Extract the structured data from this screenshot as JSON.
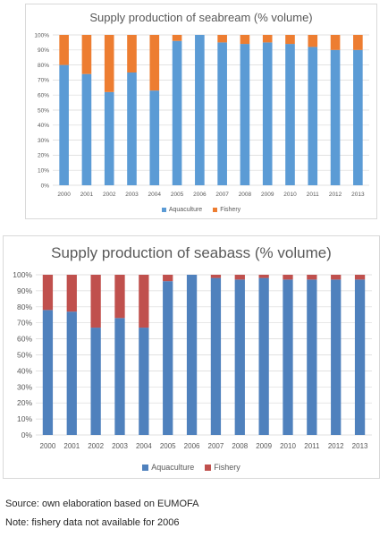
{
  "chart_data": [
    {
      "type": "bar",
      "stacked": true,
      "title": "Supply production of seabream (% volume)",
      "categories": [
        "2000",
        "2001",
        "2002",
        "2003",
        "2004",
        "2005",
        "2006",
        "2007",
        "2008",
        "2009",
        "2010",
        "2011",
        "2012",
        "2013"
      ],
      "series": [
        {
          "name": "Aquaculture",
          "color": "#5b9bd5",
          "values": [
            80,
            74,
            62,
            75,
            63,
            96,
            100,
            95,
            94,
            95,
            94,
            92,
            90,
            90
          ]
        },
        {
          "name": "Fishery",
          "color": "#ed7d31",
          "values": [
            20,
            26,
            38,
            25,
            37,
            4,
            0,
            5,
            6,
            5,
            6,
            8,
            10,
            10
          ]
        }
      ],
      "y_ticks": [
        "0%",
        "10%",
        "20%",
        "30%",
        "40%",
        "50%",
        "60%",
        "70%",
        "80%",
        "90%",
        "100%"
      ],
      "ylim": [
        0,
        100
      ],
      "grid": true,
      "legend_position": "bottom"
    },
    {
      "type": "bar",
      "stacked": true,
      "title": "Supply production of seabass (% volume)",
      "categories": [
        "2000",
        "2001",
        "2002",
        "2003",
        "2004",
        "2005",
        "2006",
        "2007",
        "2008",
        "2009",
        "2010",
        "2011",
        "2012",
        "2013"
      ],
      "series": [
        {
          "name": "Aquaculture",
          "color": "#4f81bd",
          "values": [
            78,
            77,
            67,
            73,
            67,
            96,
            100,
            98,
            97,
            98,
            97,
            97,
            97,
            97
          ]
        },
        {
          "name": "Fishery",
          "color": "#c0504d",
          "values": [
            22,
            23,
            33,
            27,
            33,
            4,
            0,
            2,
            3,
            2,
            3,
            3,
            3,
            3
          ]
        }
      ],
      "y_ticks": [
        "0%",
        "10%",
        "20%",
        "30%",
        "40%",
        "50%",
        "60%",
        "70%",
        "80%",
        "90%",
        "100%"
      ],
      "ylim": [
        0,
        100
      ],
      "grid": true,
      "legend_position": "bottom"
    }
  ],
  "notes": {
    "source": "Source: own elaboration based on EUMOFA",
    "fishery": "Note: fishery data not available for 2006"
  }
}
